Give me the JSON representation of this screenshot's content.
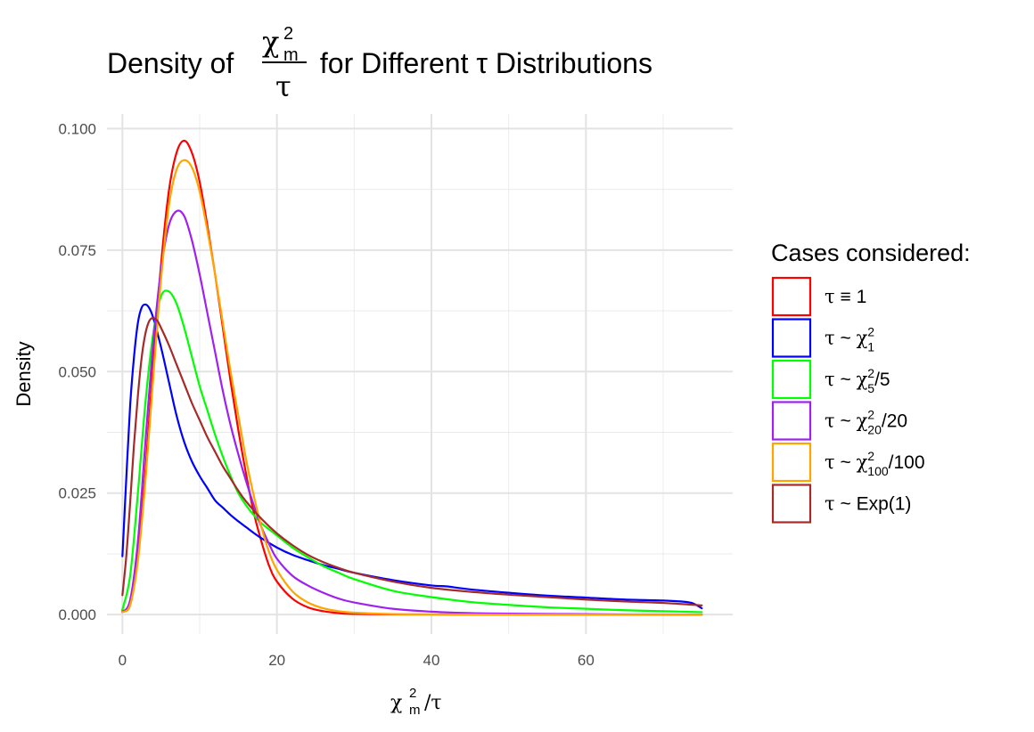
{
  "chart_data": {
    "type": "line",
    "title": {
      "prefix": "Density of ",
      "numerator": "χ",
      "numerator_sup": "2",
      "numerator_sub": "m",
      "denominator": "τ",
      "suffix": " for Different τ Distributions"
    },
    "xlabel": {
      "base": "χ",
      "sup": "2",
      "sub": "m",
      "rest": "/τ"
    },
    "ylabel": "Density",
    "xlim": [
      -2,
      79
    ],
    "ylim": [
      -0.004,
      0.103
    ],
    "x_ticks": [
      0,
      20,
      40,
      60
    ],
    "x_tick_labels": [
      "0",
      "20",
      "40",
      "60"
    ],
    "y_ticks": [
      0,
      0.025,
      0.05,
      0.075,
      0.1
    ],
    "y_tick_labels": [
      "0.000",
      "0.025",
      "0.050",
      "0.075",
      "0.100"
    ],
    "grid": true,
    "legend": {
      "title": "Cases considered:",
      "position": "right",
      "entries": [
        {
          "tau": "τ",
          "rel": " ≡ ",
          "base": "1",
          "sup": "",
          "sub": "",
          "rest": ""
        },
        {
          "tau": "τ",
          "rel": " ~ ",
          "base": "χ",
          "sup": "2",
          "sub": "1",
          "rest": ""
        },
        {
          "tau": "τ",
          "rel": " ~ ",
          "base": "χ",
          "sup": "2",
          "sub": "5",
          "rest": "/5"
        },
        {
          "tau": "τ",
          "rel": " ~ ",
          "base": "χ",
          "sup": "2",
          "sub": "20",
          "rest": "/20"
        },
        {
          "tau": "τ",
          "rel": " ~ ",
          "base": "χ",
          "sup": "2",
          "sub": "100",
          "rest": "/100"
        },
        {
          "tau": "τ",
          "rel": " ~ ",
          "base": "Exp(1)",
          "sup": "",
          "sub": "",
          "rest": ""
        }
      ]
    },
    "series": [
      {
        "color": "#ff0000",
        "x": [
          0,
          1,
          2,
          3,
          4,
          5,
          6,
          7,
          8,
          9,
          10,
          11,
          12,
          13,
          14,
          15,
          16,
          17,
          18,
          19,
          20,
          22,
          24,
          26,
          28,
          30,
          35,
          40,
          50,
          60,
          70,
          75
        ],
        "y": [
          0.0008,
          0.002,
          0.012,
          0.03,
          0.052,
          0.072,
          0.087,
          0.095,
          0.0975,
          0.095,
          0.089,
          0.08,
          0.07,
          0.059,
          0.048,
          0.038,
          0.029,
          0.021,
          0.015,
          0.01,
          0.0068,
          0.0033,
          0.0015,
          0.0007,
          0.0003,
          0.00015,
          5e-05,
          2e-05,
          0,
          0,
          0,
          0
        ]
      },
      {
        "color": "#0000ff",
        "x": [
          0,
          0.5,
          1,
          1.5,
          2,
          2.5,
          3,
          3.5,
          4,
          5,
          6,
          7,
          8,
          9,
          10,
          11,
          12,
          13,
          14,
          15,
          16,
          17,
          18,
          20,
          22,
          24,
          26,
          28,
          30,
          35,
          40,
          42,
          45,
          50,
          55,
          60,
          65,
          70,
          73,
          74,
          75
        ],
        "y": [
          0.012,
          0.028,
          0.043,
          0.053,
          0.06,
          0.0632,
          0.0638,
          0.063,
          0.061,
          0.055,
          0.048,
          0.041,
          0.0355,
          0.0315,
          0.0285,
          0.026,
          0.0235,
          0.022,
          0.0205,
          0.0192,
          0.018,
          0.0168,
          0.0157,
          0.0138,
          0.0123,
          0.0112,
          0.0102,
          0.0094,
          0.0086,
          0.0071,
          0.006,
          0.0058,
          0.0052,
          0.0045,
          0.0039,
          0.0035,
          0.0031,
          0.0029,
          0.0026,
          0.0022,
          0.0013
        ]
      },
      {
        "color": "#00ff00",
        "x": [
          0,
          1,
          2,
          3,
          4,
          5,
          6,
          7,
          8,
          9,
          10,
          11,
          12,
          13,
          14,
          15,
          16,
          17,
          18,
          20,
          22,
          24,
          26,
          28,
          30,
          35,
          40,
          45,
          50,
          55,
          60,
          65,
          70,
          75
        ],
        "y": [
          0.001,
          0.008,
          0.025,
          0.044,
          0.058,
          0.0655,
          0.0665,
          0.064,
          0.059,
          0.053,
          0.047,
          0.042,
          0.037,
          0.0325,
          0.0285,
          0.025,
          0.0225,
          0.0205,
          0.0188,
          0.0163,
          0.0138,
          0.0118,
          0.01,
          0.0086,
          0.0073,
          0.0049,
          0.0036,
          0.0026,
          0.002,
          0.0015,
          0.0012,
          0.0009,
          0.0007,
          0.0005
        ]
      },
      {
        "color": "#a020f0",
        "x": [
          0,
          1,
          2,
          3,
          4,
          5,
          6,
          7,
          8,
          9,
          10,
          11,
          12,
          13,
          14,
          15,
          16,
          17,
          18,
          19,
          20,
          22,
          24,
          26,
          28,
          30,
          35,
          40,
          45,
          50,
          60,
          70,
          75
        ],
        "y": [
          0.0005,
          0.003,
          0.015,
          0.036,
          0.056,
          0.071,
          0.08,
          0.083,
          0.082,
          0.077,
          0.07,
          0.062,
          0.054,
          0.046,
          0.039,
          0.033,
          0.0275,
          0.0225,
          0.018,
          0.0145,
          0.0115,
          0.008,
          0.006,
          0.0045,
          0.0033,
          0.0025,
          0.0012,
          0.0006,
          0.0003,
          0.0002,
          0.0001,
          0,
          0
        ]
      },
      {
        "color": "#ffa500",
        "x": [
          0,
          1,
          2,
          3,
          4,
          5,
          6,
          7,
          8,
          9,
          10,
          11,
          12,
          13,
          14,
          15,
          16,
          17,
          18,
          19,
          20,
          22,
          24,
          26,
          28,
          30,
          35,
          40,
          50,
          60,
          70,
          75
        ],
        "y": [
          0.0005,
          0.002,
          0.011,
          0.028,
          0.049,
          0.069,
          0.084,
          0.0915,
          0.0935,
          0.092,
          0.087,
          0.079,
          0.07,
          0.06,
          0.05,
          0.041,
          0.032,
          0.0245,
          0.018,
          0.0128,
          0.0092,
          0.0048,
          0.0025,
          0.0013,
          0.0007,
          0.0004,
          0.0001,
          5e-05,
          0,
          0,
          0,
          0
        ]
      },
      {
        "color": "#a52a2a",
        "x": [
          0,
          0.5,
          1,
          1.5,
          2,
          2.5,
          3,
          3.5,
          4,
          4.5,
          5,
          6,
          7,
          8,
          9,
          10,
          11,
          12,
          13,
          14,
          15,
          16,
          18,
          20,
          22,
          24,
          26,
          28,
          30,
          35,
          40,
          45,
          50,
          55,
          60,
          65,
          70,
          75
        ],
        "y": [
          0.004,
          0.012,
          0.023,
          0.035,
          0.045,
          0.053,
          0.058,
          0.0605,
          0.061,
          0.0605,
          0.059,
          0.0555,
          0.0515,
          0.0475,
          0.0435,
          0.04,
          0.0365,
          0.0335,
          0.0305,
          0.028,
          0.0255,
          0.0233,
          0.0197,
          0.0167,
          0.0143,
          0.0123,
          0.0108,
          0.0096,
          0.0086,
          0.0068,
          0.0055,
          0.0047,
          0.0041,
          0.0036,
          0.0031,
          0.0027,
          0.0024,
          0.0019
        ]
      }
    ]
  }
}
